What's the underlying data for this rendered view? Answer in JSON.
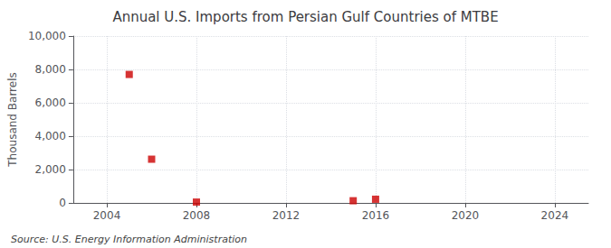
{
  "chart_data": {
    "type": "scatter",
    "title": "Annual U.S. Imports from Persian Gulf Countries of MTBE",
    "ylabel": "Thousand Barrels",
    "annotations": [
      "Source: U.S. Energy Information Administration"
    ],
    "x": [
      2005,
      2006,
      2008,
      2015,
      2016
    ],
    "values": [
      7700,
      2620,
      50,
      130,
      220
    ],
    "color": "#cc0000",
    "marker": "square",
    "xlim": [
      2002.5,
      2025.5
    ],
    "xticks": [
      2004,
      2008,
      2012,
      2016,
      2020,
      2024
    ],
    "ylim": [
      0,
      10000
    ],
    "yticks": [
      0,
      {
        "value": 2000,
        "label": "2,000"
      },
      {
        "value": 4000,
        "label": "4,000"
      },
      {
        "value": 6000,
        "label": "6,000"
      },
      {
        "value": 8000,
        "label": "8,000"
      },
      {
        "value": 10000,
        "label": "10,000"
      }
    ],
    "grid": true
  }
}
